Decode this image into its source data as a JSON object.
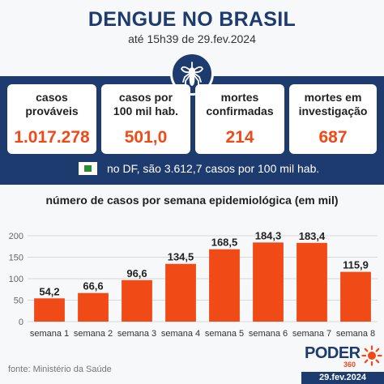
{
  "header": {
    "title": "DENGUE NO BRASIL",
    "subtitle": "até 15h39 de 29.fev.2024"
  },
  "icon": "mosquito-icon",
  "stats": [
    {
      "label_line1": "casos",
      "label_line2": "prováveis",
      "value": "1.017.278"
    },
    {
      "label_line1": "casos por",
      "label_line2": "100 mil hab.",
      "value": "501,0"
    },
    {
      "label_line1": "mortes",
      "label_line2": "confirmadas",
      "value": "214"
    },
    {
      "label_line1": "mortes em",
      "label_line2": "investigação",
      "value": "687"
    }
  ],
  "df_note": "no DF, são 3.612,7 casos por 100 mil hab.",
  "colors": {
    "navy": "#1d3b6e",
    "accent": "#f04a17",
    "flag_green": "#2e8b2e"
  },
  "chart_data": {
    "type": "bar",
    "title": "número de casos por semana epidemiológica (em mil)",
    "categories": [
      "semana 1",
      "semana 2",
      "semana 3",
      "semana 4",
      "semana 5",
      "semana 6",
      "semana 7",
      "semana 8"
    ],
    "values": [
      54.2,
      66.6,
      96.6,
      134.5,
      168.5,
      184.3,
      183.4,
      115.9
    ],
    "value_labels": [
      "54,2",
      "66,6",
      "96,6",
      "134,5",
      "168,5",
      "184,3",
      "183,4",
      "115,9"
    ],
    "ylim": [
      0,
      200
    ],
    "yticks": [
      0,
      50,
      100,
      150,
      200
    ],
    "grid": true,
    "xlabel": "",
    "ylabel": ""
  },
  "footer": {
    "source": "fonte: Ministério da Saúde",
    "logo_text": "PODER",
    "logo_num": "360",
    "date": "29.fev.2024"
  }
}
